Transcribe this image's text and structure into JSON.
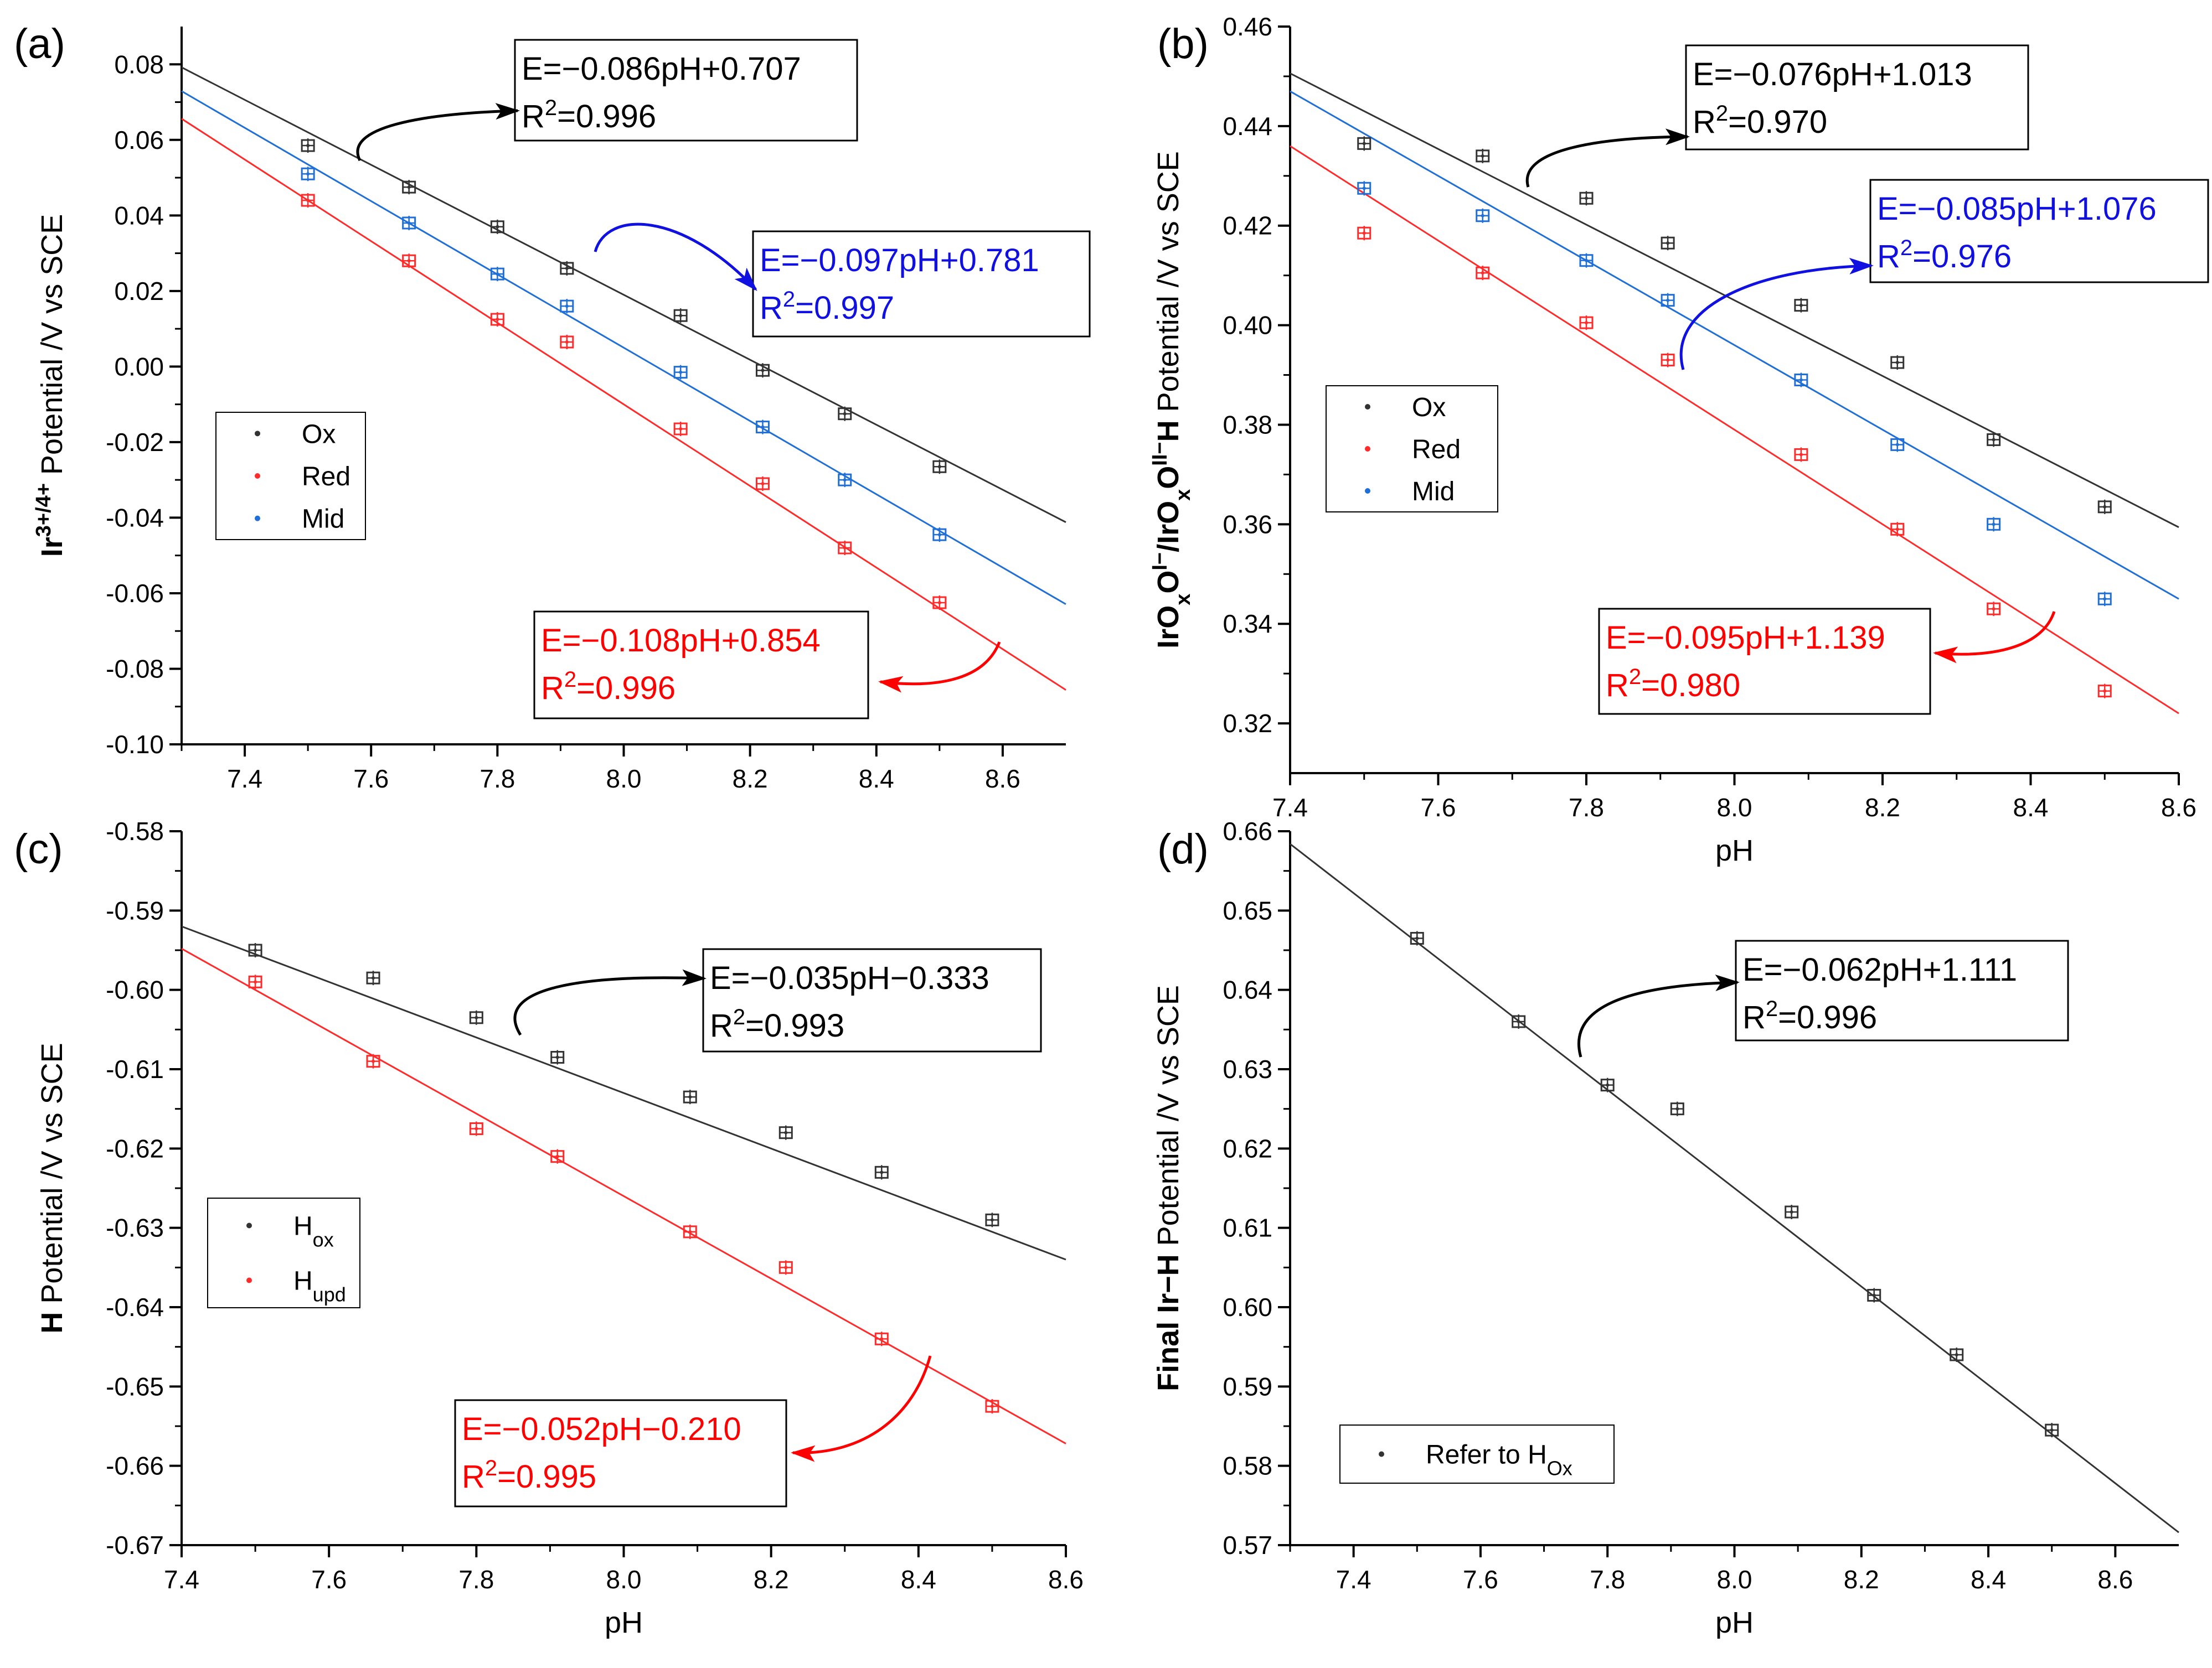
{
  "colors": {
    "ox": "#333333",
    "red": "#ff2a2a",
    "mid": "#1f6fd6",
    "axis": "#000000",
    "blue_text": "#1010e0",
    "red_text": "#ff0000"
  },
  "chart_data": [
    {
      "panel_label": "(a)",
      "type": "scatter",
      "ylabel_bold": "Ir",
      "ylabel_sup": "3+/4+",
      "ylabel_rest": " Potential /V vs SCE",
      "xlabel": "",
      "xlim": [
        7.3,
        8.7
      ],
      "ylim": [
        -0.1,
        0.09
      ],
      "xticks": [
        7.4,
        7.6,
        7.8,
        8.0,
        8.2,
        8.4,
        8.6
      ],
      "xtick_labels": [
        "7.4",
        "7.6",
        "7.8",
        "8.0",
        "8.2",
        "8.4",
        "8.6"
      ],
      "yticks": [
        -0.1,
        -0.08,
        -0.06,
        -0.04,
        -0.02,
        0.0,
        0.02,
        0.04,
        0.06,
        0.08
      ],
      "ytick_labels": [
        "-0.10",
        "-0.08",
        "-0.06",
        "-0.04",
        "-0.02",
        "0.00",
        "0.02",
        "0.04",
        "0.06",
        "0.08"
      ],
      "x": [
        7.5,
        7.66,
        7.8,
        7.91,
        8.09,
        8.22,
        8.35,
        8.5
      ],
      "series": [
        {
          "name": "Ox",
          "color_key": "ox",
          "values": [
            0.0585,
            0.0475,
            0.037,
            0.026,
            0.0135,
            -0.001,
            -0.0125,
            -0.0265
          ],
          "fit": {
            "slope": -0.086,
            "intercept": 0.707
          }
        },
        {
          "name": "Red",
          "color_key": "red",
          "values": [
            0.044,
            0.028,
            0.0125,
            0.0065,
            -0.0165,
            -0.031,
            -0.048,
            -0.0625
          ],
          "fit": {
            "slope": -0.108,
            "intercept": 0.854
          }
        },
        {
          "name": "Mid",
          "color_key": "mid",
          "values": [
            0.051,
            0.038,
            0.0245,
            0.016,
            -0.0015,
            -0.016,
            -0.03,
            -0.0445
          ],
          "fit": {
            "slope": -0.097,
            "intercept": 0.781
          }
        }
      ],
      "legend": [
        "Ox",
        "Red",
        "Mid"
      ],
      "annotations": [
        {
          "eq": "E=−0.086pH+0.707",
          "r2": "=0.996",
          "color_key": "axis"
        },
        {
          "eq": "E=−0.097pH+0.781",
          "r2": "=0.997",
          "color_key": "blue_text"
        },
        {
          "eq": "E=−0.108pH+0.854",
          "r2": "=0.996",
          "color_key": "red_text"
        }
      ]
    },
    {
      "panel_label": "(b)",
      "type": "scatter",
      "ylabel_bold": "IrOxOI−/IrOxOII−H",
      "ylabel_sup": "",
      "ylabel_rest": " Potential /V vs SCE",
      "xlabel": "pH",
      "xlim": [
        7.4,
        8.6
      ],
      "ylim": [
        0.31,
        0.46
      ],
      "xticks": [
        7.4,
        7.6,
        7.8,
        8.0,
        8.2,
        8.4,
        8.6
      ],
      "xtick_labels": [
        "7.4",
        "7.6",
        "7.8",
        "8.0",
        "8.2",
        "8.4",
        "8.6"
      ],
      "yticks": [
        0.32,
        0.34,
        0.36,
        0.38,
        0.4,
        0.42,
        0.44,
        0.46
      ],
      "ytick_labels": [
        "0.32",
        "0.34",
        "0.36",
        "0.38",
        "0.40",
        "0.42",
        "0.44",
        "0.46"
      ],
      "x": [
        7.5,
        7.66,
        7.8,
        7.91,
        8.09,
        8.22,
        8.35,
        8.5
      ],
      "series": [
        {
          "name": "Ox",
          "color_key": "ox",
          "values": [
            0.4365,
            0.434,
            0.4255,
            0.4165,
            0.404,
            0.3925,
            0.377,
            0.3635
          ],
          "fit": {
            "slope": -0.076,
            "intercept": 1.013
          }
        },
        {
          "name": "Red",
          "color_key": "red",
          "values": [
            0.4185,
            0.4105,
            0.4005,
            0.393,
            0.374,
            0.359,
            0.343,
            0.3265
          ],
          "fit": {
            "slope": -0.095,
            "intercept": 1.139
          }
        },
        {
          "name": "Mid",
          "color_key": "mid",
          "values": [
            0.4275,
            0.422,
            0.413,
            0.405,
            0.389,
            0.376,
            0.36,
            0.345
          ],
          "fit": {
            "slope": -0.085,
            "intercept": 1.076
          }
        }
      ],
      "legend": [
        "Ox",
        "Red",
        "Mid"
      ],
      "annotations": [
        {
          "eq": "E=−0.076pH+1.013",
          "r2": "=0.970",
          "color_key": "axis"
        },
        {
          "eq": "E=−0.085pH+1.076",
          "r2": "=0.976",
          "color_key": "blue_text"
        },
        {
          "eq": "E=−0.095pH+1.139",
          "r2": "=0.980",
          "color_key": "red_text"
        }
      ]
    },
    {
      "panel_label": "(c)",
      "type": "scatter",
      "ylabel_bold": "H",
      "ylabel_sup": "",
      "ylabel_rest": " Potential /V vs SCE",
      "xlabel": "pH",
      "xlim": [
        7.4,
        8.6
      ],
      "ylim": [
        -0.67,
        -0.58
      ],
      "xticks": [
        7.4,
        7.6,
        7.8,
        8.0,
        8.2,
        8.4,
        8.6
      ],
      "xtick_labels": [
        "7.4",
        "7.6",
        "7.8",
        "8.0",
        "8.2",
        "8.4",
        "8.6"
      ],
      "yticks": [
        -0.67,
        -0.66,
        -0.65,
        -0.64,
        -0.63,
        -0.62,
        -0.61,
        -0.6,
        -0.59,
        -0.58
      ],
      "ytick_labels": [
        "-0.67",
        "-0.66",
        "-0.65",
        "-0.64",
        "-0.63",
        "-0.62",
        "-0.61",
        "-0.60",
        "-0.59",
        "-0.58"
      ],
      "x": [
        7.5,
        7.66,
        7.8,
        7.91,
        8.09,
        8.22,
        8.35,
        8.5
      ],
      "series": [
        {
          "name": "Hox",
          "color_key": "ox",
          "values": [
            -0.595,
            -0.5985,
            -0.6035,
            -0.6085,
            -0.6135,
            -0.618,
            -0.623,
            -0.629
          ],
          "fit": {
            "slope": -0.035,
            "intercept": -0.333
          }
        },
        {
          "name": "Hupd",
          "color_key": "red",
          "values": [
            -0.599,
            -0.609,
            -0.6175,
            -0.621,
            -0.6305,
            -0.635,
            -0.644,
            -0.6525
          ],
          "fit": {
            "slope": -0.052,
            "intercept": -0.21
          }
        }
      ],
      "legend": [
        {
          "main": "H",
          "sub": "ox"
        },
        {
          "main": "H",
          "sub": "upd"
        }
      ],
      "annotations": [
        {
          "eq": "E=−0.035pH−0.333",
          "r2": "=0.993",
          "color_key": "axis"
        },
        {
          "eq": "E=−0.052pH−0.210",
          "r2": "=0.995",
          "color_key": "red_text"
        }
      ]
    },
    {
      "panel_label": "(d)",
      "type": "scatter",
      "ylabel_bold": "Final Ir−H",
      "ylabel_sup": "",
      "ylabel_rest": " Potential /V vs SCE",
      "xlabel": "pH",
      "xlim": [
        7.3,
        8.7
      ],
      "ylim": [
        0.57,
        0.66
      ],
      "xticks": [
        7.4,
        7.6,
        7.8,
        8.0,
        8.2,
        8.4,
        8.6
      ],
      "xtick_labels": [
        "7.4",
        "7.6",
        "7.8",
        "8.0",
        "8.2",
        "8.4",
        "8.6"
      ],
      "yticks": [
        0.57,
        0.58,
        0.59,
        0.6,
        0.61,
        0.62,
        0.63,
        0.64,
        0.65,
        0.66
      ],
      "ytick_labels": [
        "0.57",
        "0.58",
        "0.59",
        "0.60",
        "0.61",
        "0.62",
        "0.63",
        "0.64",
        "0.65",
        "0.66"
      ],
      "x": [
        7.5,
        7.66,
        7.8,
        7.91,
        8.09,
        8.22,
        8.35,
        8.5
      ],
      "series": [
        {
          "name": "Refer to HOx",
          "color_key": "ox",
          "values": [
            0.6465,
            0.636,
            0.628,
            0.625,
            0.612,
            0.6015,
            0.594,
            0.5845
          ],
          "fit": {
            "slope": -0.062,
            "intercept": 1.111
          }
        }
      ],
      "legend": [
        {
          "main": "Refer to H",
          "sub": "Ox"
        }
      ],
      "annotations": [
        {
          "eq": "E=−0.062pH+1.111",
          "r2": "=0.996",
          "color_key": "axis"
        }
      ]
    }
  ],
  "r2_prefix": "R",
  "r2_sup": "2"
}
